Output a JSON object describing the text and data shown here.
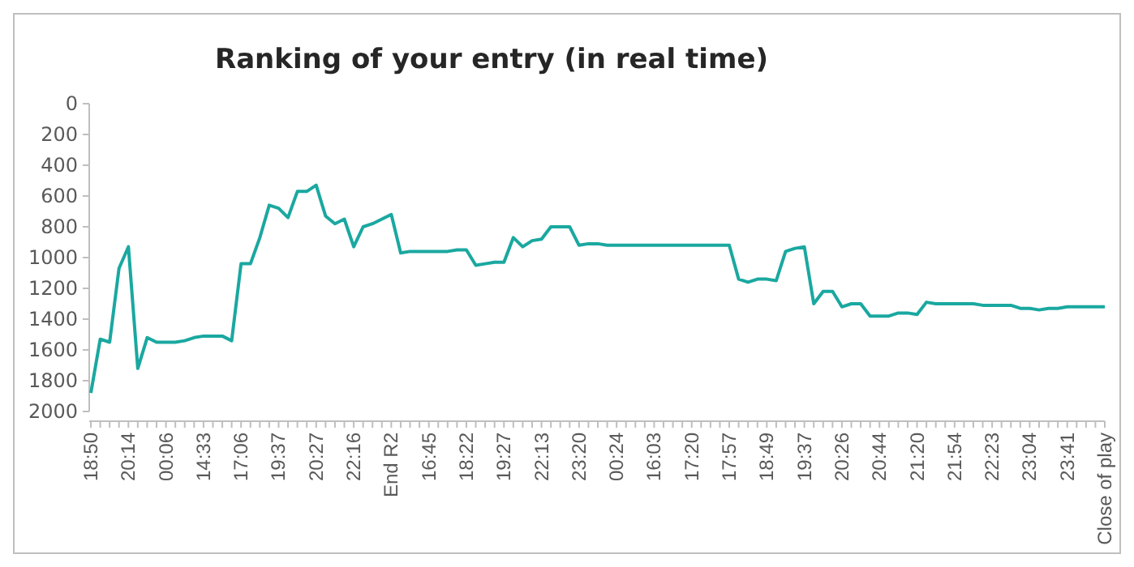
{
  "chart_data": {
    "type": "line",
    "title": "Ranking of your entry (in real time)",
    "categories": [
      "18:50",
      null,
      null,
      null,
      "20:14",
      null,
      null,
      null,
      "00:06",
      null,
      null,
      null,
      "14:33",
      null,
      null,
      null,
      "17:06",
      null,
      null,
      null,
      "19:37",
      null,
      null,
      null,
      "20:27",
      null,
      null,
      null,
      "22:16",
      null,
      null,
      null,
      "End R2",
      null,
      null,
      null,
      "16:45",
      null,
      null,
      null,
      "18:22",
      null,
      null,
      null,
      "19:27",
      null,
      null,
      null,
      "22:13",
      null,
      null,
      null,
      "23:20",
      null,
      null,
      null,
      "00:24",
      null,
      null,
      null,
      "16:03",
      null,
      null,
      null,
      "17:20",
      null,
      null,
      null,
      "17:57",
      null,
      null,
      null,
      "18:49",
      null,
      null,
      null,
      "19:37",
      null,
      null,
      null,
      "20:26",
      null,
      null,
      null,
      "20:44",
      null,
      null,
      null,
      "21:20",
      null,
      null,
      null,
      "21:54",
      null,
      null,
      null,
      "22:23",
      null,
      null,
      null,
      "23:04",
      null,
      null,
      null,
      "23:41",
      null,
      null,
      null,
      "Close of play"
    ],
    "series": [
      {
        "color": "#1aa8a0",
        "values": [
          1880,
          1530,
          1550,
          1070,
          930,
          1720,
          1520,
          1550,
          1550,
          1550,
          1540,
          1520,
          1510,
          1510,
          1510,
          1540,
          1040,
          1040,
          870,
          660,
          680,
          740,
          570,
          570,
          530,
          730,
          780,
          750,
          930,
          800,
          780,
          750,
          720,
          970,
          960,
          960,
          960,
          960,
          960,
          950,
          950,
          1050,
          1040,
          1030,
          1030,
          870,
          930,
          890,
          880,
          800,
          800,
          800,
          920,
          910,
          910,
          920,
          920,
          920,
          920,
          920,
          920,
          920,
          920,
          920,
          920,
          920,
          920,
          920,
          920,
          1140,
          1160,
          1140,
          1140,
          1150,
          960,
          940,
          930,
          1300,
          1220,
          1220,
          1320,
          1300,
          1300,
          1380,
          1380,
          1380,
          1360,
          1360,
          1370,
          1290,
          1300,
          1300,
          1300,
          1300,
          1300,
          1310,
          1310,
          1310,
          1310,
          1330,
          1330,
          1340,
          1330,
          1330,
          1320,
          1320,
          1320,
          1320,
          1320
        ]
      }
    ],
    "ylim": [
      2000,
      0
    ],
    "yticks": [
      0,
      200,
      400,
      600,
      800,
      1000,
      1200,
      1400,
      1600,
      1800,
      2000
    ],
    "grid": false,
    "marker": "none",
    "line_style": "solid"
  }
}
